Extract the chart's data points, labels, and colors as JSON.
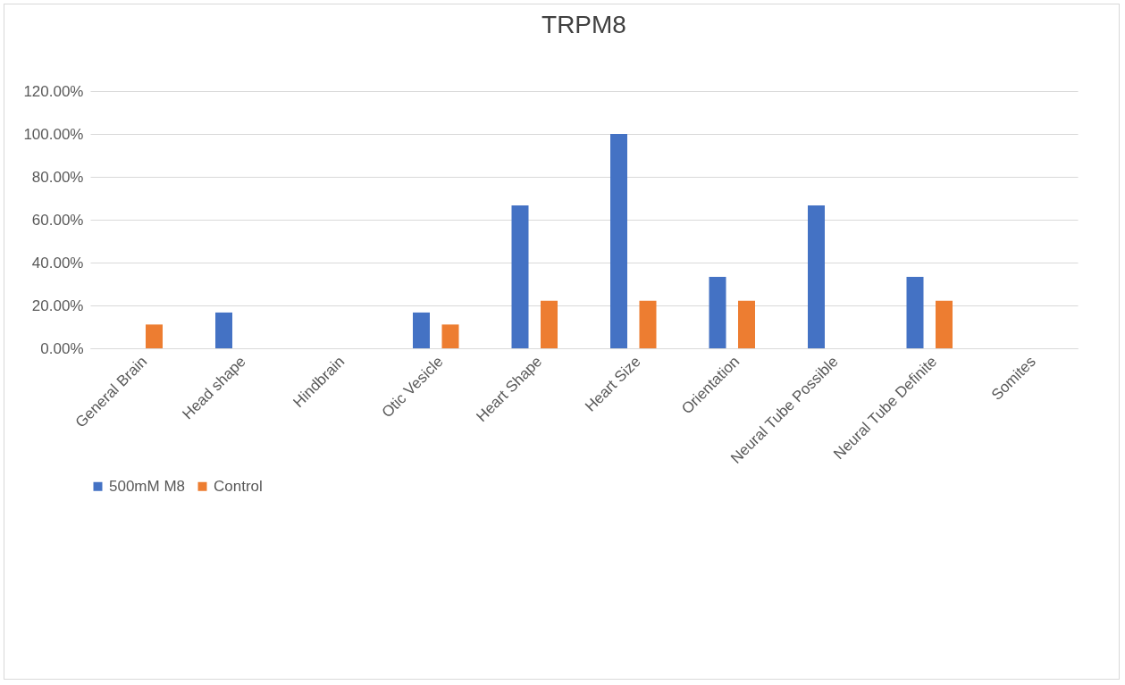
{
  "chart_data": {
    "type": "bar",
    "title": "TRPM8",
    "categories": [
      "General Brain",
      "Head shape",
      "Hindbrain",
      "Otic Vesicle",
      "Heart Shape",
      "Heart Size",
      "Orientation",
      "Neural Tube Possible",
      "Neural Tube Definite",
      "Somites"
    ],
    "series": [
      {
        "name": "500mM M8",
        "color": "#4472c4",
        "values": [
          0,
          16.7,
          0,
          16.7,
          66.7,
          100,
          33.3,
          66.7,
          33.3,
          0
        ]
      },
      {
        "name": "Control",
        "color": "#ed7d31",
        "values": [
          11.1,
          0,
          0,
          11.1,
          22.2,
          22.2,
          22.2,
          0,
          22.2,
          0
        ]
      }
    ],
    "ylim": [
      0,
      120
    ],
    "yticks": [
      {
        "value": 0,
        "label": "0.00%"
      },
      {
        "value": 20,
        "label": "20.00%"
      },
      {
        "value": 40,
        "label": "40.00%"
      },
      {
        "value": 60,
        "label": "60.00%"
      },
      {
        "value": 80,
        "label": "80.00%"
      },
      {
        "value": 100,
        "label": "100.00%"
      },
      {
        "value": 120,
        "label": "120.00%"
      }
    ],
    "grid": "y",
    "legend": "bottom"
  }
}
